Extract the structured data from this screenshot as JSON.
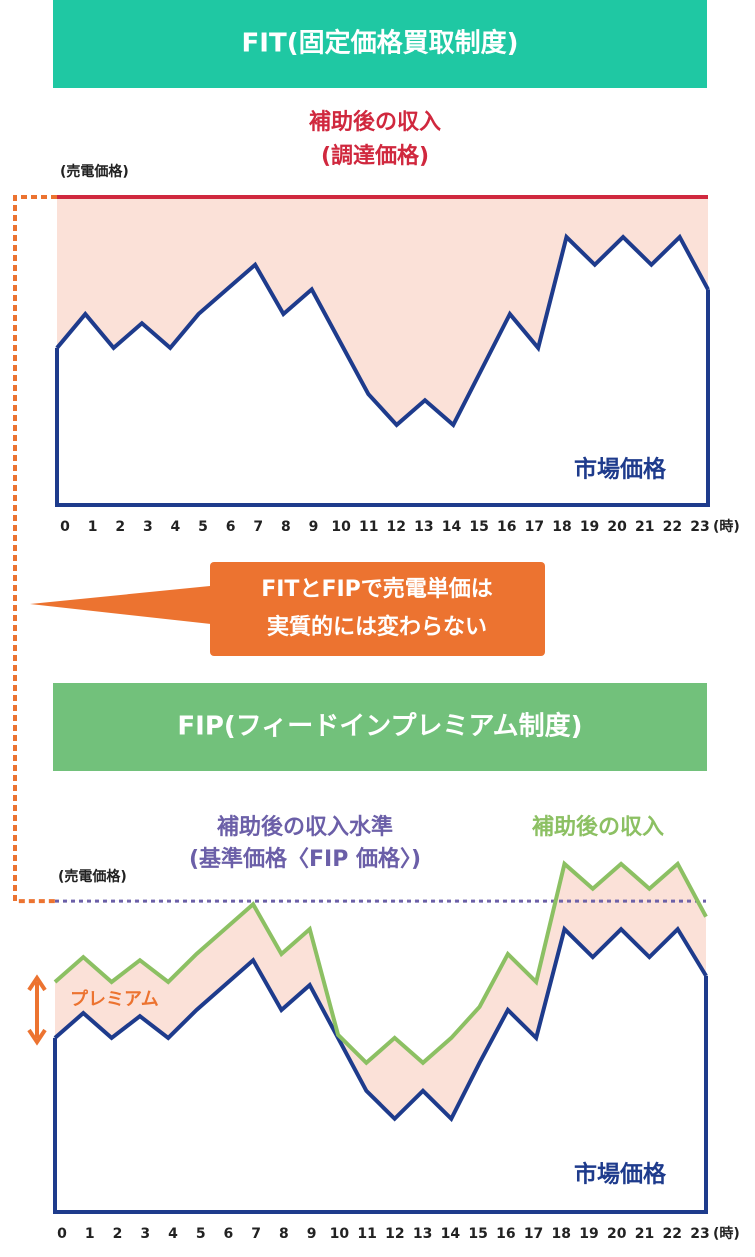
{
  "banners": [
    {
      "text": "FIT(固定価格買取制度)",
      "color": "#1fc8a3"
    },
    {
      "text": "FIP(フィードインプレミアム制度)",
      "color": "#72c17b"
    }
  ],
  "callout": {
    "lines": [
      "FITとFIPで売電単価は",
      "実質的には変わらない"
    ],
    "color": "#ec7330"
  },
  "chart_data": [
    {
      "type": "line",
      "y_label": "(売電価格)",
      "x_label": "(時)",
      "categories": [
        "0",
        "1",
        "2",
        "3",
        "4",
        "5",
        "6",
        "7",
        "8",
        "9",
        "10",
        "11",
        "12",
        "13",
        "14",
        "15",
        "16",
        "17",
        "18",
        "19",
        "20",
        "21",
        "22",
        "23"
      ],
      "ylim": [
        0,
        100
      ],
      "reference": {
        "label": [
          "補助後の収入",
          "(調達価格)"
        ],
        "value": 100,
        "color": "#d0283e"
      },
      "fill_color": "#fbe1d8",
      "series": [
        {
          "name": "市場価格",
          "color": "#1e3b8c",
          "values": [
            51,
            62,
            51,
            59,
            51,
            62,
            70,
            78,
            62,
            70,
            53,
            36,
            26,
            34,
            26,
            44,
            62,
            51,
            87,
            78,
            87,
            78,
            87,
            70
          ]
        }
      ]
    },
    {
      "type": "line",
      "y_label": "(売電価格)",
      "x_label": "(時)",
      "categories": [
        "0",
        "1",
        "2",
        "3",
        "4",
        "5",
        "6",
        "7",
        "8",
        "9",
        "10",
        "11",
        "12",
        "13",
        "14",
        "15",
        "16",
        "17",
        "18",
        "19",
        "20",
        "21",
        "22",
        "23"
      ],
      "ylim": [
        0,
        120
      ],
      "reference": {
        "label": [
          "補助後の収入水準",
          "(基準価格〈FIP 価格〉)"
        ],
        "value": 100,
        "color": "#6b5fa8"
      },
      "fill_color": "#fbe1d8",
      "annotation": {
        "text": "プレミアム",
        "color": "#ec7330"
      },
      "series": [
        {
          "name": "市場価格",
          "color": "#1e3b8c",
          "values": [
            56,
            64,
            56,
            63,
            56,
            65,
            73,
            81,
            65,
            73,
            56,
            39,
            30,
            39,
            30,
            48,
            65,
            56,
            91,
            82,
            91,
            82,
            91,
            76
          ]
        },
        {
          "name": "補助後の収入",
          "color": "#8cc063",
          "values": [
            74,
            82,
            74,
            81,
            74,
            83,
            91,
            99,
            83,
            91,
            57,
            48,
            56,
            48,
            56,
            66,
            83,
            74,
            112,
            104,
            112,
            104,
            112,
            95
          ]
        }
      ]
    }
  ]
}
